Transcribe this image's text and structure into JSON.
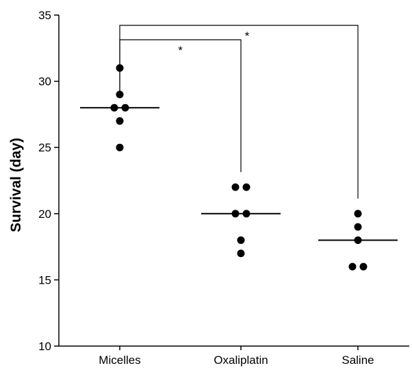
{
  "chart_data": {
    "type": "scatter",
    "title": "",
    "xlabel": "",
    "ylabel": "Survival (day)",
    "ylim": [
      10,
      35
    ],
    "yticks": [
      10,
      15,
      20,
      25,
      30,
      35
    ],
    "categories": [
      "Micelles",
      "Oxaliplatin",
      "Saline"
    ],
    "groups": [
      {
        "category": "Micelles",
        "points": [
          31,
          29,
          28,
          28,
          27,
          25
        ],
        "median": 28
      },
      {
        "category": "Oxaliplatin",
        "points": [
          22,
          22,
          20,
          20,
          18,
          17
        ],
        "median": 20
      },
      {
        "category": "Saline",
        "points": [
          20,
          19,
          18,
          16,
          16
        ],
        "median": 18
      }
    ],
    "significance": [
      {
        "from": "Micelles",
        "to": "Oxaliplatin",
        "label": "*"
      },
      {
        "from": "Micelles",
        "to": "Saline",
        "label": "*"
      }
    ],
    "grid": false,
    "legend": "none",
    "colors": {
      "marker": "#000000",
      "line": "#000000"
    }
  }
}
